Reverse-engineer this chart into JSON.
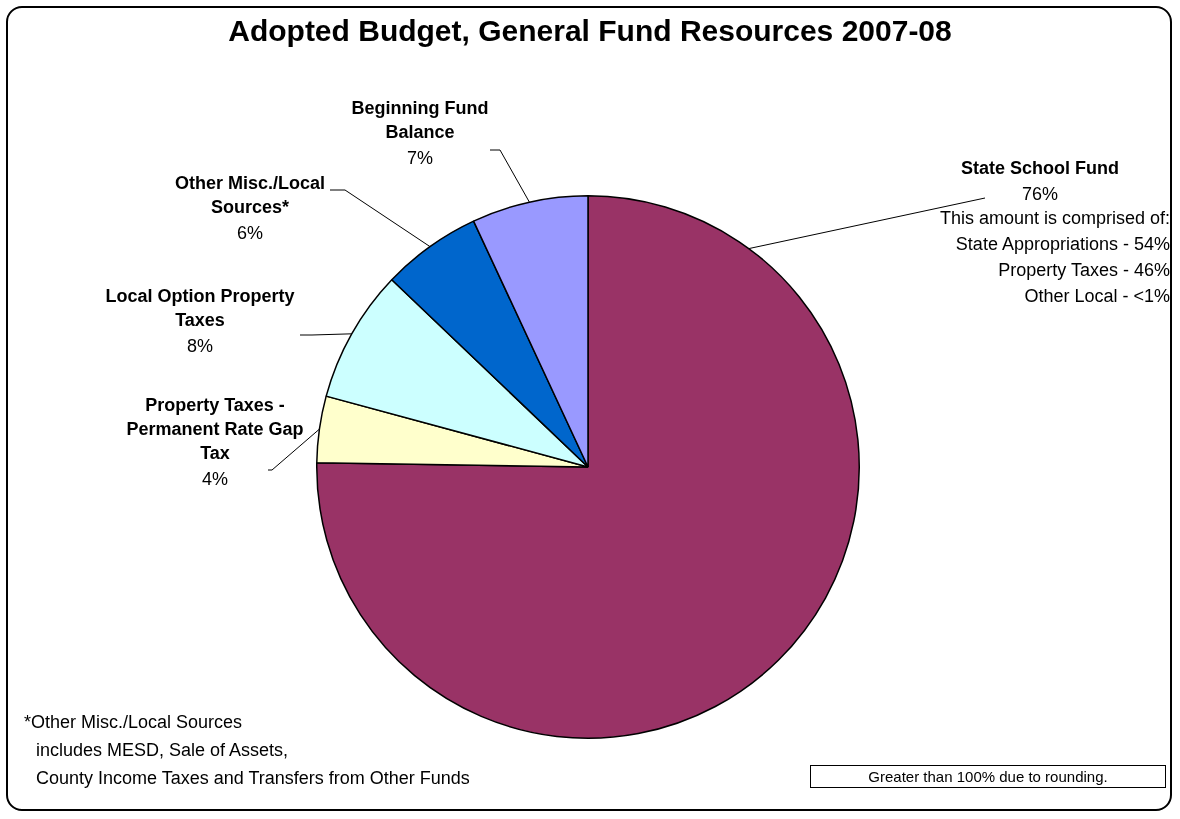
{
  "chart_data": {
    "type": "pie",
    "title": "Adopted Budget, General Fund Resources 2007-08",
    "categories": [
      "State School Fund",
      "Property Taxes - Permanent Rate Gap Tax",
      "Local Option Property Taxes",
      "Other Misc./Local Sources*",
      "Beginning Fund Balance"
    ],
    "values": [
      76,
      4,
      8,
      6,
      7
    ],
    "value_labels": [
      "76%",
      "4%",
      "8%",
      "6%",
      "7%"
    ],
    "colors": [
      "#993366",
      "#ffffcc",
      "#ccffff",
      "#0066cc",
      "#9999ff"
    ],
    "legend": false,
    "annotations": [
      "This amount is comprised of:",
      "State Appropriations - 54%",
      "Property Taxes - 46%",
      "Other Local - <1%",
      "*Other Misc./Local Sources",
      "includes MESD, Sale of Assets,",
      "County Income Taxes and Transfers from Other Funds",
      "Greater than 100% due to rounding."
    ]
  }
}
